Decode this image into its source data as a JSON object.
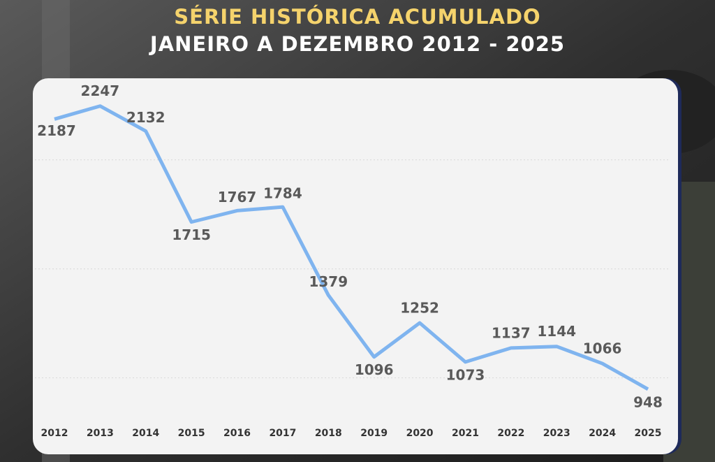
{
  "chart_data": {
    "type": "line",
    "title": "SÉRIE HISTÓRICA ACUMULADO",
    "subtitle": "JANEIRO A DEZEMBRO 2012 - 2025",
    "categories": [
      "2012",
      "2013",
      "2014",
      "2015",
      "2016",
      "2017",
      "2018",
      "2019",
      "2020",
      "2021",
      "2022",
      "2023",
      "2024",
      "2025"
    ],
    "series": [
      {
        "color": "#7fb4ef",
        "values": [
          2187,
          2247,
          2132,
          1715,
          1767,
          1784,
          1379,
          1096,
          1252,
          1073,
          1137,
          1144,
          1066,
          948
        ]
      }
    ],
    "ylim": [
      800,
      2400
    ],
    "yticks": [
      1000,
      1500,
      2000
    ],
    "grid": true
  }
}
